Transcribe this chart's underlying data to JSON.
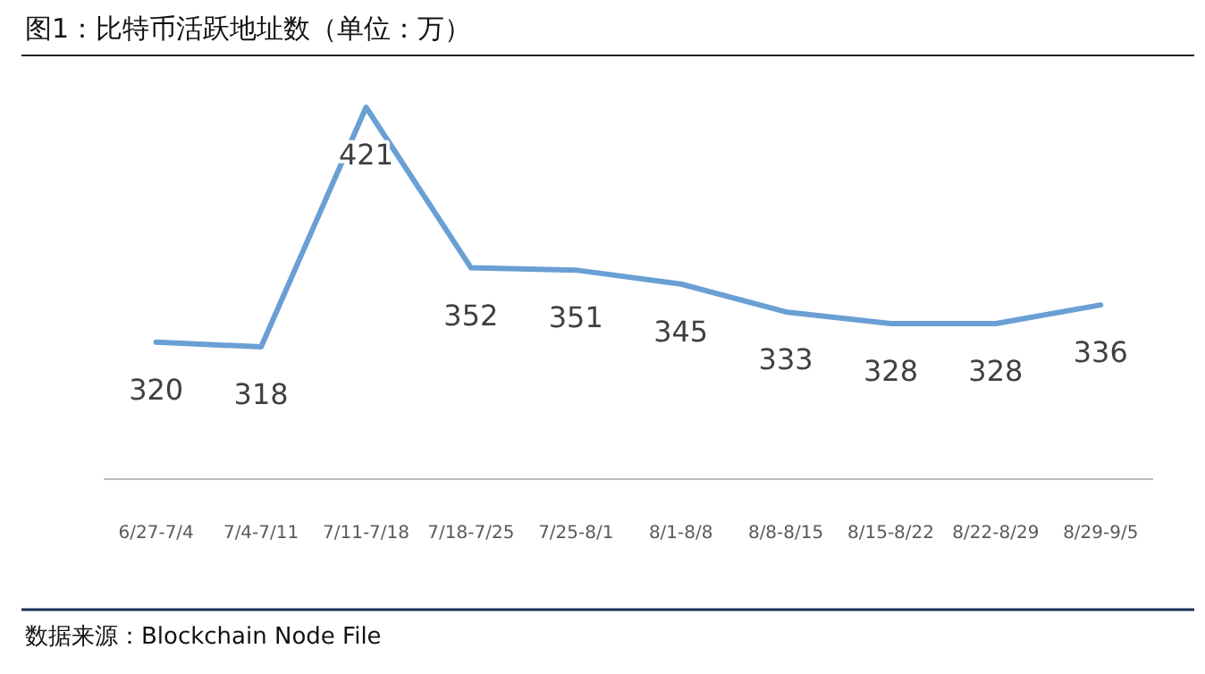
{
  "chart_data": {
    "type": "line",
    "title": "图1：比特币活跃地址数（单位：万）",
    "categories": [
      "6/27-7/4",
      "7/4-7/11",
      "7/11-7/18",
      "7/18-7/25",
      "7/25-8/1",
      "8/1-8/8",
      "8/8-8/15",
      "8/15-8/22",
      "8/22-8/29",
      "8/29-9/5"
    ],
    "series": [
      {
        "color": "#6a9fd4",
        "values": [
          320,
          318,
          421,
          352,
          351,
          345,
          333,
          328,
          328,
          336
        ]
      }
    ],
    "tick_labels": "x",
    "data_labels": true,
    "marker": "none",
    "line_style": "solid",
    "annotations": [
      "数据来源：Blockchain Node File"
    ]
  }
}
